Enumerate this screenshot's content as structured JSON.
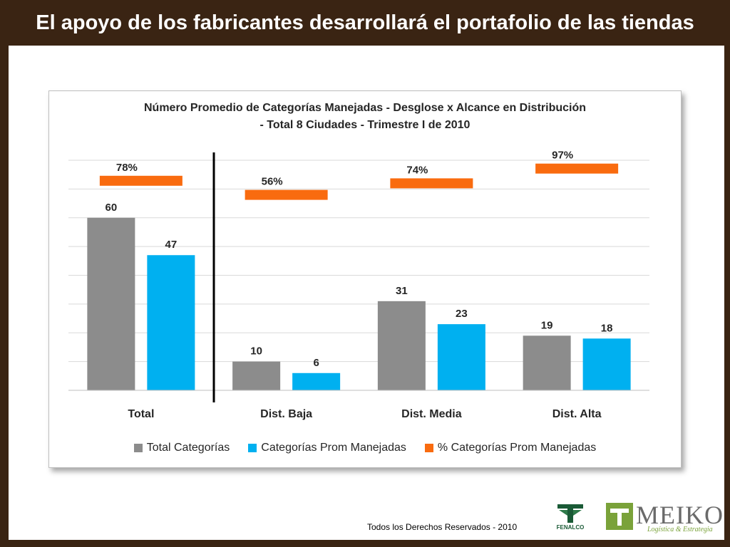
{
  "slide": {
    "title": "El apoyo de los fabricantes desarrollará el portafolio de las tiendas",
    "footer": "Todos los Derechos Reservados - 2010",
    "logos": {
      "fenalco": "FENALCO",
      "meiko": "MEIKO",
      "meiko_sub": "Logística & Estrategia"
    }
  },
  "chart_data": {
    "type": "bar",
    "title_line1": "Número Promedio de Categorías Manejadas - Desglose x Alcance en Distribución",
    "title_line2": "- Total 8 Ciudades - Trimestre I de 2010",
    "categories": [
      "Total",
      "Dist. Baja",
      "Dist. Media",
      "Dist. Alta"
    ],
    "series": [
      {
        "name": "Total Categorías",
        "color": "#8c8c8c",
        "values": [
          60,
          10,
          31,
          19
        ]
      },
      {
        "name": "Categorías Prom Manejadas",
        "color": "#00b0f0",
        "values": [
          47,
          6,
          23,
          18
        ]
      }
    ],
    "percent_series": {
      "name": "% Categorías Prom Manejadas",
      "color": "#f96b0f",
      "values": [
        78,
        56,
        74,
        97
      ],
      "labels": [
        "78%",
        "56%",
        "74%",
        "97%"
      ]
    },
    "ylim": [
      0,
      80
    ],
    "grid": true,
    "legend": "bottom"
  }
}
